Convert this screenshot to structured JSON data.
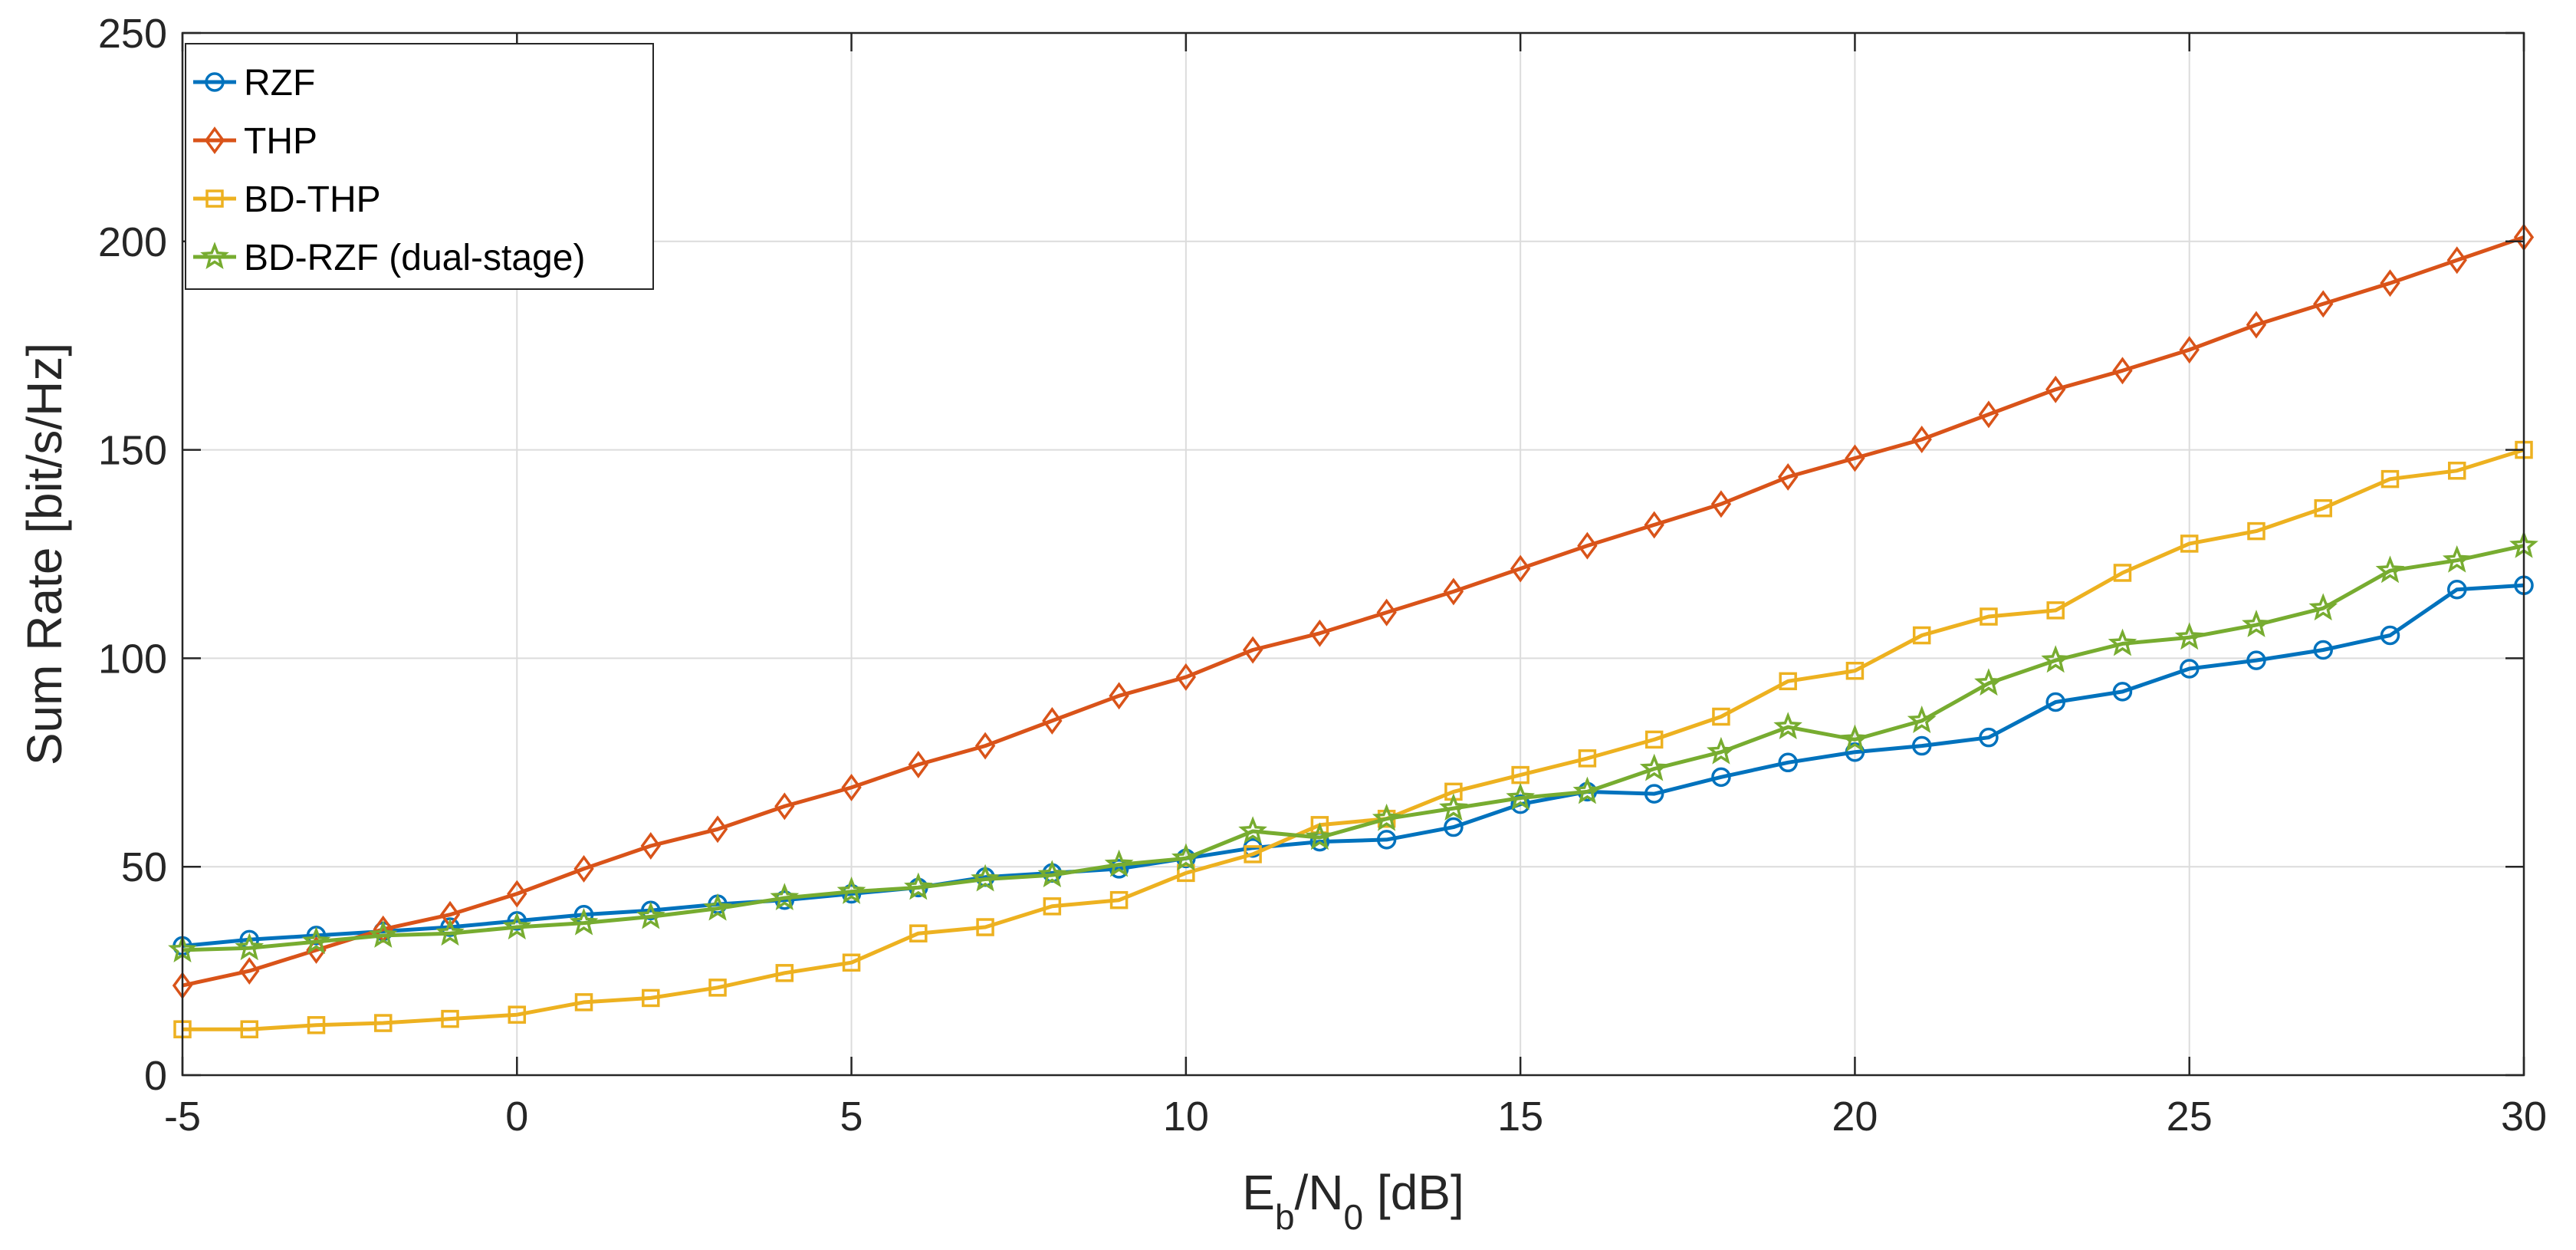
{
  "chart_data": {
    "type": "line",
    "title": "",
    "xlabel": {
      "base": "E",
      "sub1": "b",
      "mid": "/N",
      "sub2": "0",
      "tail": " [dB]"
    },
    "ylabel": "Sum Rate [bit/s/Hz]",
    "xlim": [
      -5,
      30
    ],
    "ylim": [
      0,
      250
    ],
    "xticks": [
      -5,
      0,
      5,
      10,
      15,
      20,
      25,
      30
    ],
    "yticks": [
      0,
      50,
      100,
      150,
      200,
      250
    ],
    "grid": true,
    "legend_location": "top-left",
    "x": [
      -5,
      -4,
      -3,
      -2,
      -1,
      0,
      1,
      2,
      3,
      4,
      5,
      6,
      7,
      8,
      9,
      10,
      11,
      12,
      13,
      14,
      15,
      16,
      17,
      18,
      19,
      20,
      21,
      22,
      23,
      24,
      25,
      26,
      27,
      28,
      29,
      30
    ],
    "series": [
      {
        "name": "RZF",
        "color": "#0072BD",
        "marker": "circle",
        "values": [
          31,
          32.5,
          33.5,
          34.5,
          35.5,
          37,
          38.5,
          39.5,
          41,
          42,
          43.5,
          45,
          47.5,
          48.5,
          49.5,
          52,
          54.5,
          56,
          56.5,
          59.5,
          65,
          68,
          67.5,
          71.5,
          75,
          77.5,
          79,
          81,
          89.5,
          92,
          97.5,
          99.5,
          102,
          105.5,
          116.5,
          117.5
        ]
      },
      {
        "name": "THP",
        "color": "#D95319",
        "marker": "diamond",
        "values": [
          21.5,
          25,
          30,
          35,
          38.5,
          43.5,
          49.5,
          55,
          59,
          64.5,
          69,
          74.5,
          79,
          85,
          91,
          95.5,
          102,
          106,
          111,
          116,
          121.5,
          127,
          132,
          137,
          143.5,
          148,
          152.5,
          158.5,
          164.5,
          169,
          174,
          180,
          185,
          190,
          195.5,
          201
        ]
      },
      {
        "name": "BD-THP",
        "color": "#EDB120",
        "marker": "square",
        "values": [
          11,
          11,
          12,
          12.5,
          13.5,
          14.5,
          17.5,
          18.5,
          21,
          24.5,
          27,
          34,
          35.5,
          40.5,
          42,
          48.5,
          53,
          60,
          61.5,
          68,
          72,
          76,
          80.5,
          86,
          94.5,
          97,
          105.5,
          110,
          111.5,
          120.5,
          127.5,
          130.5,
          136,
          143,
          145,
          150
        ]
      },
      {
        "name": "BD-RZF (dual-stage)",
        "color": "#77AC30",
        "marker": "star",
        "values": [
          30,
          30.5,
          32,
          33.5,
          34,
          35.5,
          36.5,
          38,
          40,
          42.5,
          44,
          45,
          47,
          48,
          50.5,
          52,
          58.5,
          57,
          61.5,
          64,
          66.5,
          68,
          73.5,
          77.5,
          83.5,
          80.5,
          85,
          94,
          99.5,
          103.5,
          105,
          108,
          112,
          121,
          123.5,
          127
        ]
      }
    ]
  }
}
